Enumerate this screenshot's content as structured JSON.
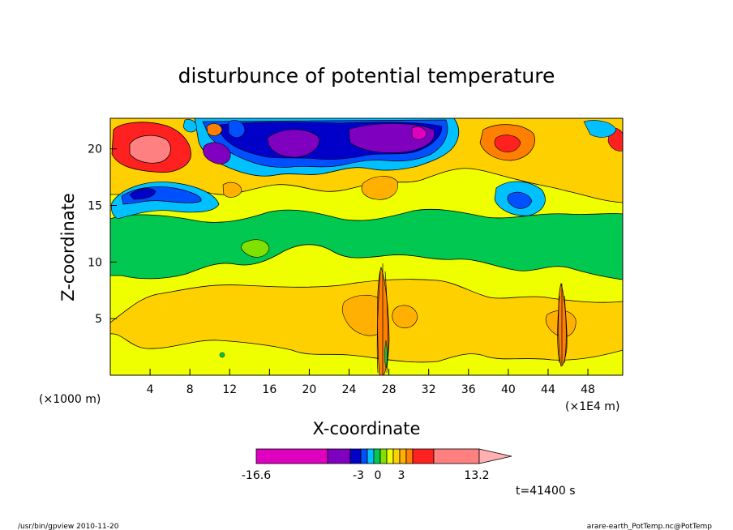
{
  "chart_data": {
    "type": "heatmap",
    "title": "disturbunce of potential temperature",
    "xlabel": "X-coordinate",
    "ylabel": "Z-coordinate",
    "x_unit_left": "(×1000 m)",
    "x_unit_right": "(×1E4 m)",
    "xlim": [
      0,
      51.5
    ],
    "ylim": [
      0,
      22.7
    ],
    "xticks": [
      4,
      8,
      12,
      16,
      20,
      24,
      28,
      32,
      36,
      40,
      44,
      48
    ],
    "yticks": [
      5,
      10,
      15,
      20
    ],
    "colorbar": {
      "levels": [
        -16.6,
        -3,
        0,
        3,
        13.2
      ],
      "tick_labels": [
        "-16.6",
        "-3",
        "0",
        "3",
        "13.2"
      ],
      "colors": [
        "#e000c0",
        "#8000c0",
        "#0000c8",
        "#0050ff",
        "#00c0ff",
        "#00c850",
        "#80e000",
        "#f0ff00",
        "#ffd000",
        "#ffb000",
        "#ff8000",
        "#ff2020",
        "#ff8080",
        "#ffb0b0"
      ]
    },
    "time_label": "t=41400 s",
    "regions": [
      {
        "name": "upper-positive-left",
        "x": [
          0.5,
          8.5
        ],
        "z": [
          17.5,
          22.5
        ],
        "level": "high"
      },
      {
        "name": "upper-negative-center",
        "x": [
          12,
          36
        ],
        "z": [
          17,
          22.7
        ],
        "level": "low"
      },
      {
        "name": "upper-negative-right",
        "x": [
          38.5,
          44
        ],
        "z": [
          14,
          18
        ],
        "level": "low"
      },
      {
        "name": "mid-green-band",
        "x": [
          0,
          51.5
        ],
        "z": [
          10,
          16
        ],
        "level": "slightly-negative"
      },
      {
        "name": "lower-warm-band",
        "x": [
          0,
          51.5
        ],
        "z": [
          2.5,
          7.5
        ],
        "level": "slightly-positive"
      },
      {
        "name": "plume-1",
        "x": [
          27.2,
          27.8
        ],
        "z": [
          0,
          9.5
        ],
        "level": "mixed"
      },
      {
        "name": "plume-2",
        "x": [
          45,
          45.6
        ],
        "z": [
          0,
          8
        ],
        "level": "mixed"
      }
    ]
  },
  "footer": {
    "left": "/usr/bin/gpview   2010-11-20",
    "right": "arare-earth_PotTemp.nc@PotTemp"
  }
}
